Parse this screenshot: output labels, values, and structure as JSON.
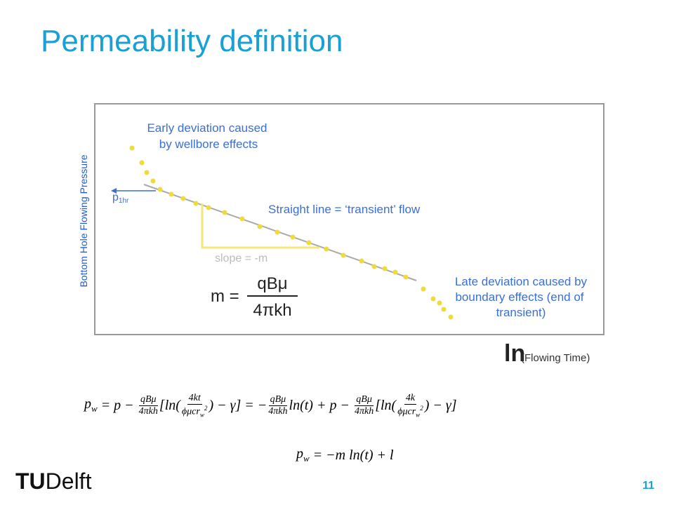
{
  "slide": {
    "title": "Permeability definition",
    "page_number": "11",
    "logo": {
      "tu": "TU",
      "delft": "Delft"
    }
  },
  "figure": {
    "y_axis_label": "Bottom Hole Flowing Pressure",
    "x_axis_label": {
      "ln": "ln",
      "rest": "(Flowing Time)"
    },
    "p1hr": {
      "base": "p",
      "sub": "1hr"
    },
    "early_note": [
      "Early deviation caused",
      "by wellbore effects"
    ],
    "straight_note": "Straight line = ‘transient’ flow",
    "slope_label": "slope = -m",
    "m_formula": {
      "lhs": "m =",
      "num": "qBμ",
      "den": "4πkh"
    },
    "late_note": [
      "Late deviation caused by",
      "boundary effects (end of",
      "transient)"
    ]
  },
  "equations": [
    [
      {
        "base": "p",
        "sub": "w"
      },
      " = p − ",
      {
        "num": "qBμ",
        "den": "4πkh"
      },
      "[ln(",
      {
        "num": "4kt",
        "den": {
          "base": "ϕμcr",
          "sub": "w",
          "sup": "2"
        }
      },
      ") − γ]",
      " = ",
      "−",
      {
        "num": "qBμ",
        "den": "4πkh"
      },
      "ln(t) + p − ",
      {
        "num": "qBμ",
        "den": "4πkh"
      },
      "[ln(",
      {
        "num": "4k",
        "den": {
          "base": "ϕμcr",
          "sub": "w",
          "sup": "2"
        }
      },
      ") − γ]"
    ],
    [
      {
        "base": "p",
        "sub": "w"
      },
      " = −m ln(t) + l"
    ]
  ]
}
